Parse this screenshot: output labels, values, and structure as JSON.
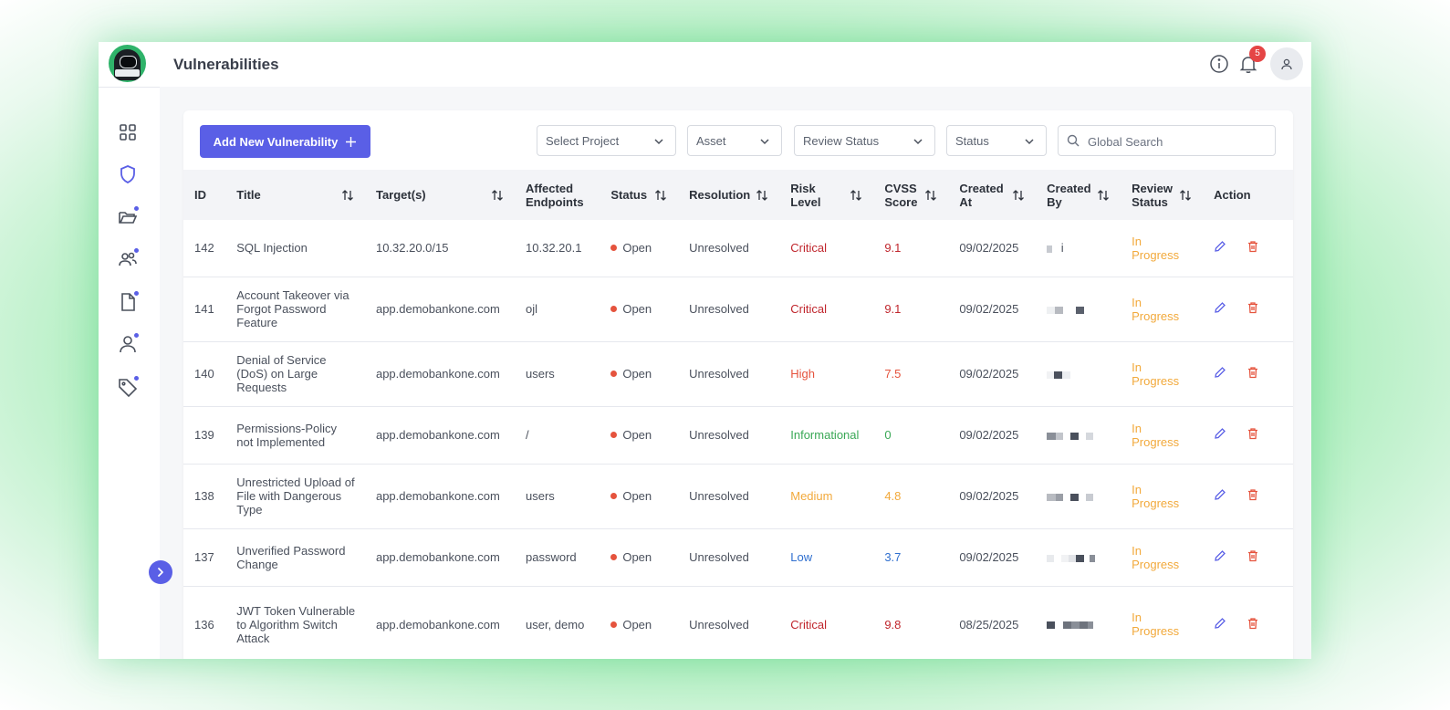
{
  "header": {
    "title": "Vulnerabilities",
    "notification_count": "5"
  },
  "toolbar": {
    "add_label": "Add New Vulnerability",
    "filters": [
      "Select Project",
      "Asset",
      "Review Status",
      "Status"
    ],
    "search_placeholder": "Global Search"
  },
  "colors": {
    "accent": "#5a5fe6",
    "critical": "#c0262d",
    "high": "#e5533d",
    "informational": "#3aa856",
    "medium": "#f2a93b",
    "low": "#2f6fcf",
    "review": "#f2a93b"
  },
  "table": {
    "columns": [
      "ID",
      "Title",
      "Target(s)",
      "Affected Endpoints",
      "Status",
      "Resolution",
      "Risk Level",
      "CVSS Score",
      "Created At",
      "Created By",
      "Review Status",
      "Action"
    ],
    "rows": [
      {
        "id": "142",
        "title": "SQL Injection",
        "target": "10.32.20.0/15",
        "endpoints": "10.32.20.1",
        "status": "Open",
        "resolution": "Unresolved",
        "risk": "Critical",
        "risk_class": "critical",
        "cvss": "9.1",
        "created_at": "09/02/2025",
        "created_by_extra": "i",
        "review": "In Progress"
      },
      {
        "id": "141",
        "title": "Account Takeover via Forgot Password Feature",
        "target": "app.demobankone.com",
        "endpoints": "ojl",
        "status": "Open",
        "resolution": "Unresolved",
        "risk": "Critical",
        "risk_class": "critical",
        "cvss": "9.1",
        "created_at": "09/02/2025",
        "created_by_extra": "",
        "review": "In Progress"
      },
      {
        "id": "140",
        "title": "Denial of Service (DoS) on Large Requests",
        "target": "app.demobankone.com",
        "endpoints": "users",
        "status": "Open",
        "resolution": "Unresolved",
        "risk": "High",
        "risk_class": "high",
        "cvss": "7.5",
        "created_at": "09/02/2025",
        "created_by_extra": "",
        "review": "In Progress"
      },
      {
        "id": "139",
        "title": "Permissions-Policy not Implemented",
        "target": "app.demobankone.com",
        "endpoints": "/",
        "status": "Open",
        "resolution": "Unresolved",
        "risk": "Informational",
        "risk_class": "informational",
        "cvss": "0",
        "created_at": "09/02/2025",
        "created_by_extra": "",
        "review": "In Progress"
      },
      {
        "id": "138",
        "title": "Unrestricted Upload of File with Dangerous Type",
        "target": "app.demobankone.com",
        "endpoints": "users",
        "status": "Open",
        "resolution": "Unresolved",
        "risk": "Medium",
        "risk_class": "medium",
        "cvss": "4.8",
        "created_at": "09/02/2025",
        "created_by_extra": "",
        "review": "In Progress"
      },
      {
        "id": "137",
        "title": "Unverified Password Change",
        "target": "app.demobankone.com",
        "endpoints": "password",
        "status": "Open",
        "resolution": "Unresolved",
        "risk": "Low",
        "risk_class": "low",
        "cvss": "3.7",
        "created_at": "09/02/2025",
        "created_by_extra": "",
        "review": "In Progress"
      },
      {
        "id": "136",
        "title": "JWT Token Vulnerable to Algorithm Switch Attack",
        "target": "app.demobankone.com",
        "endpoints": "user, demo",
        "status": "Open",
        "resolution": "Unresolved",
        "risk": "Critical",
        "risk_class": "critical",
        "cvss": "9.8",
        "created_at": "08/25/2025",
        "created_by_extra": "",
        "review": "In Progress"
      }
    ]
  },
  "icons": {
    "nav": [
      "grid-icon",
      "shield-icon",
      "folder-icon",
      "users-icon",
      "document-icon",
      "user-icon",
      "tag-icon"
    ],
    "header": [
      "info-icon",
      "bell-icon",
      "user-avatar-icon"
    ]
  }
}
